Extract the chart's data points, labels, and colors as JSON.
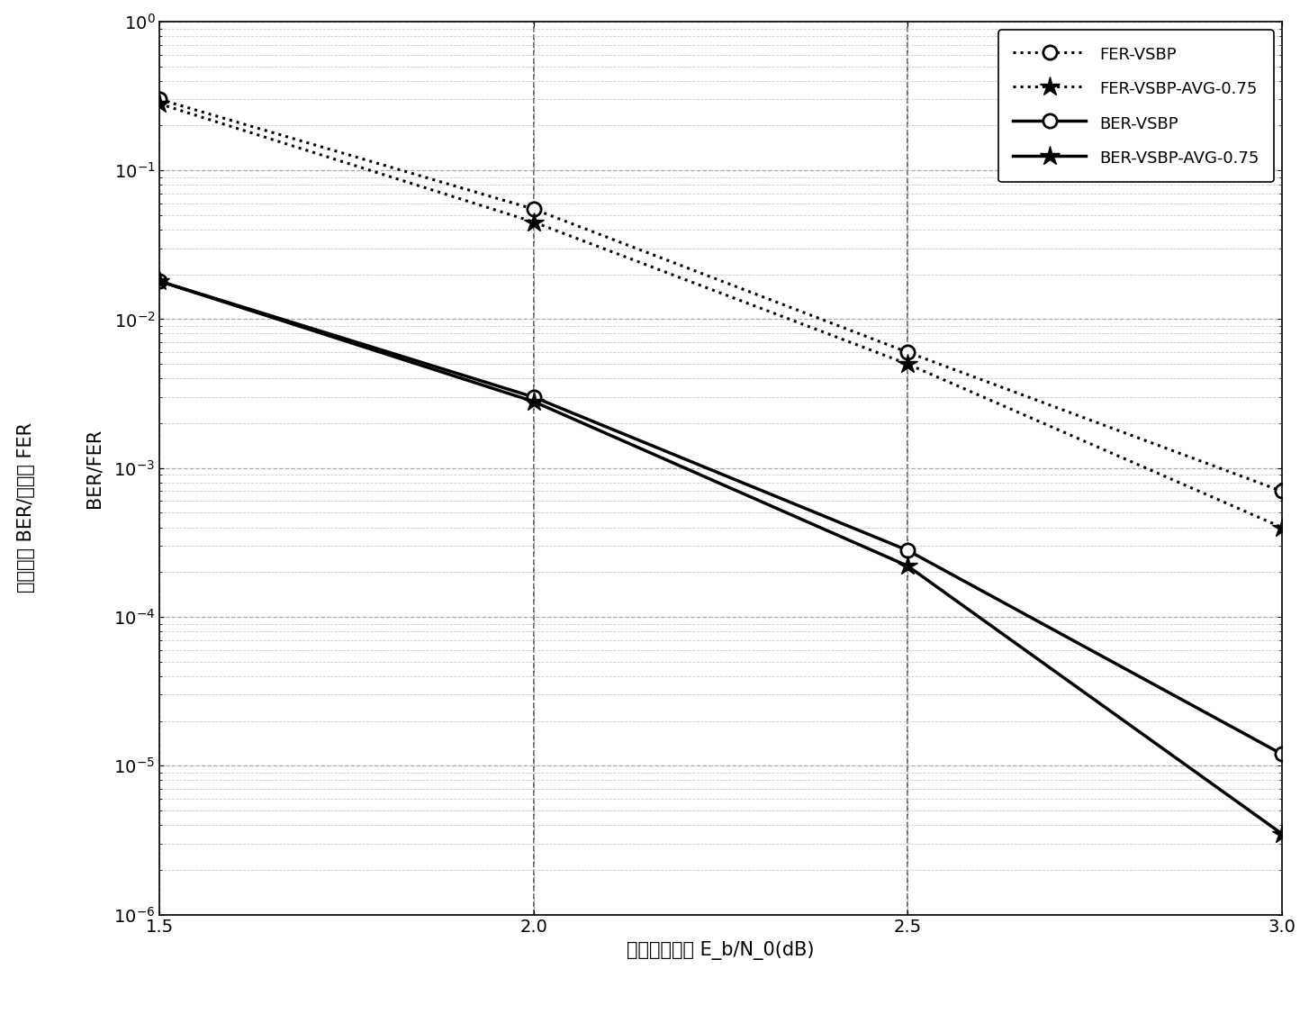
{
  "x": [
    1.5,
    2.0,
    2.5,
    3.0
  ],
  "FER_VSBP": [
    0.3,
    0.055,
    0.006,
    0.0007
  ],
  "FER_VSBP_AVG": [
    0.28,
    0.045,
    0.005,
    0.0004
  ],
  "BER_VSBP": [
    0.018,
    0.003,
    0.00028,
    1.2e-05
  ],
  "BER_VSBP_AVG": [
    0.018,
    0.0028,
    0.00022,
    3.5e-06
  ],
  "xlabel_cn": "归一化信噪比 E",
  "xlabel_sub": "b",
  "xlabel_rest": "/N",
  "xlabel_sub2": "0",
  "xlabel_end": "(dB)",
  "xlabel_full": "归一化信噪比 E_b/N_0(dB)",
  "ylabel_cn": "误比特率 BER/误帧率 FER",
  "ylabel_en": "BER/FER",
  "legend_labels": [
    "FER-VSBP",
    "FER-VSBP-AVG-0.75",
    "BER-VSBP",
    "BER-VSBP-AVG-0.75"
  ],
  "xlim": [
    1.5,
    3.0
  ],
  "ylim_min_exp": -6,
  "ylim_max_exp": 0,
  "label_fontsize": 15,
  "tick_fontsize": 14,
  "legend_fontsize": 13,
  "line_color": "#000000",
  "background_color": "#ffffff",
  "grid_major_color": "#aaaaaa",
  "grid_minor_color": "#cccccc"
}
